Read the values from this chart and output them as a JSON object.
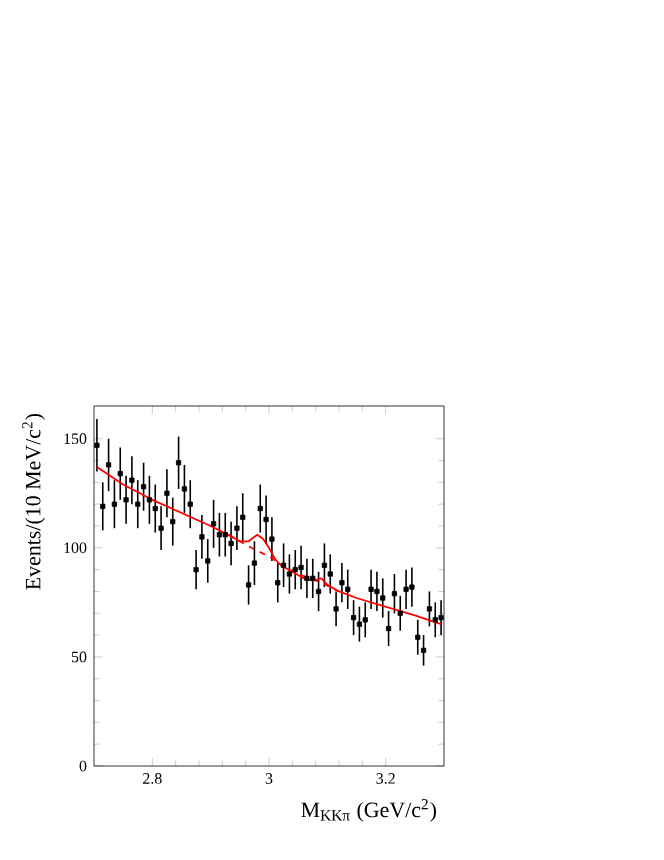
{
  "chart_data": {
    "type": "scatter",
    "xlabel": "M$_{KKπ}$ (GeV/c$^{2}$)",
    "ylabel": "Events/(10 MeV/c$^{2}$)",
    "xlim": [
      2.7,
      3.3
    ],
    "ylim": [
      0,
      165
    ],
    "xticks": [
      2.8,
      3,
      3.2
    ],
    "yticks": [
      0,
      50,
      100,
      150
    ],
    "series": [
      {
        "type": "scatter",
        "color": "#000000",
        "marker": "square",
        "x": [
          2.705,
          2.715,
          2.725,
          2.735,
          2.745,
          2.755,
          2.765,
          2.775,
          2.785,
          2.795,
          2.805,
          2.815,
          2.825,
          2.835,
          2.845,
          2.855,
          2.865,
          2.875,
          2.885,
          2.895,
          2.905,
          2.915,
          2.925,
          2.935,
          2.945,
          2.955,
          2.965,
          2.975,
          2.985,
          2.995,
          3.005,
          3.015,
          3.025,
          3.035,
          3.045,
          3.055,
          3.065,
          3.075,
          3.085,
          3.095,
          3.105,
          3.115,
          3.125,
          3.135,
          3.145,
          3.155,
          3.165,
          3.175,
          3.185,
          3.195,
          3.205,
          3.215,
          3.225,
          3.235,
          3.245,
          3.255,
          3.265,
          3.275,
          3.285,
          3.295
        ],
        "values": [
          147,
          119,
          138,
          120,
          134,
          122,
          131,
          120,
          128,
          122,
          118,
          109,
          125,
          112,
          139,
          127,
          120,
          90,
          105,
          94,
          111,
          106,
          106,
          102,
          109,
          114,
          83,
          93,
          118,
          113,
          104,
          84,
          92,
          88,
          90,
          91,
          86,
          86,
          80,
          92,
          88,
          72,
          84,
          81,
          68,
          65,
          67,
          81,
          80,
          77,
          63,
          79,
          70,
          81,
          82,
          59,
          53,
          72,
          67,
          68
        ],
        "errors": [
          12,
          11,
          12,
          11,
          12,
          11,
          11,
          11,
          11,
          11,
          11,
          10,
          11,
          11,
          12,
          11,
          11,
          9,
          10,
          10,
          11,
          10,
          10,
          10,
          10,
          11,
          9,
          10,
          11,
          11,
          10,
          9,
          10,
          9,
          9,
          10,
          9,
          9,
          9,
          10,
          9,
          8,
          9,
          9,
          8,
          8,
          8,
          9,
          9,
          9,
          8,
          9,
          8,
          9,
          9,
          8,
          7,
          8,
          8,
          8
        ]
      },
      {
        "type": "line",
        "color": "#ff0000",
        "marker": "none",
        "line_style": "solid",
        "x": [
          2.705,
          2.75,
          2.8,
          2.85,
          2.9,
          2.93,
          2.95,
          2.965,
          2.98,
          2.99,
          3.0,
          3.01,
          3.02,
          3.04,
          3.06,
          3.075,
          3.09,
          3.1,
          3.12,
          3.15,
          3.2,
          3.25,
          3.295
        ],
        "values": [
          137,
          129,
          122,
          116,
          110,
          106,
          103,
          103,
          106,
          104,
          100,
          95,
          92,
          89,
          86,
          85,
          86,
          83,
          80,
          77,
          73,
          69,
          65
        ]
      },
      {
        "type": "line",
        "color": "#ff0000",
        "marker": "none",
        "line_style": "dashed",
        "x": [
          2.93,
          2.95,
          2.97,
          3.0,
          3.03,
          3.06,
          3.09,
          3.12
        ],
        "values": [
          106,
          103,
          100,
          96,
          91,
          87,
          84,
          80
        ]
      }
    ]
  }
}
